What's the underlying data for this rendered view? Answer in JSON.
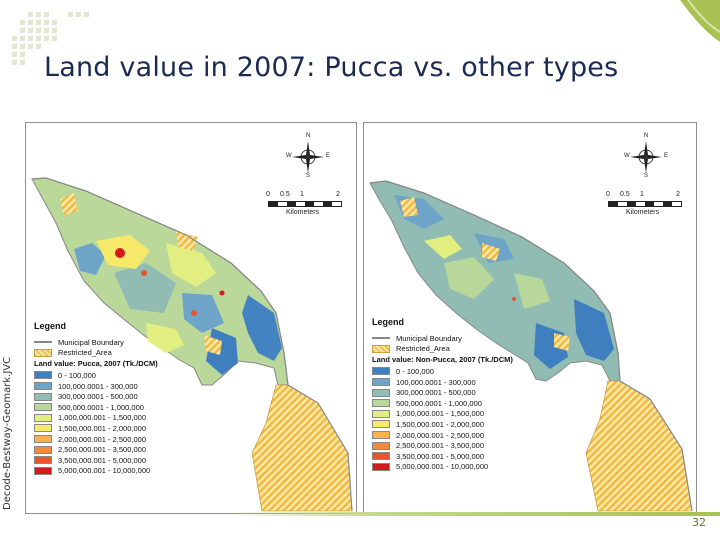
{
  "slide": {
    "title": "Land value in 2007: Pucca vs. other types",
    "side_caption": "Decode-Bestway-Geomark.JVC",
    "page_number": "32",
    "accent_color": "#a8c152"
  },
  "maps": [
    {
      "compass": {
        "n": "N",
        "s": "S",
        "e": "E",
        "w": "W"
      },
      "scale": {
        "ticks": [
          "0",
          "0.5",
          "1",
          "2"
        ],
        "unit": "Kilometers"
      },
      "legend": {
        "title": "Legend",
        "boundary_label": "Municipal Boundary",
        "restricted_label": "Restricted_Area",
        "value_title": "Land value: Pucca, 2007 (Tk./DCM)",
        "classes": [
          {
            "label": "0 - 100,000",
            "color": "#3f7fbf"
          },
          {
            "label": "100,000.0001 - 300,000",
            "color": "#6ea4c8"
          },
          {
            "label": "300,000.0001 - 500,000",
            "color": "#91bcb4"
          },
          {
            "label": "500,000.0001 - 1,000,000",
            "color": "#b7d89a"
          },
          {
            "label": "1,000,000.001 - 1,500,000",
            "color": "#e2ef80"
          },
          {
            "label": "1,500,000.001 - 2,000,000",
            "color": "#f7ea6a"
          },
          {
            "label": "2,000,000.001 - 2,500,000",
            "color": "#f6b24d"
          },
          {
            "label": "2,500,000.001 - 3,500,000",
            "color": "#f08a3a"
          },
          {
            "label": "3,500,000.001 - 5,000,000",
            "color": "#e8552c"
          },
          {
            "label": "5,000,000.001 - 10,000,000",
            "color": "#d7191c"
          }
        ]
      }
    },
    {
      "compass": {
        "n": "N",
        "s": "S",
        "e": "E",
        "w": "W"
      },
      "scale": {
        "ticks": [
          "0",
          "0.5",
          "1",
          "2"
        ],
        "unit": "Kilometers"
      },
      "legend": {
        "title": "Legend",
        "boundary_label": "Municipal Boundary",
        "restricted_label": "Restricted_Area",
        "value_title": "Land value: Non-Pucca, 2007 (Tk./DCM)",
        "classes": [
          {
            "label": "0 - 100,000",
            "color": "#3f7fbf"
          },
          {
            "label": "100,000.0001 - 300,000",
            "color": "#6ea4c8"
          },
          {
            "label": "300,000.0001 - 500,000",
            "color": "#91bcb4"
          },
          {
            "label": "500,000.0001 - 1,000,000",
            "color": "#b7d89a"
          },
          {
            "label": "1,000,000.001 - 1,500,000",
            "color": "#e2ef80"
          },
          {
            "label": "1,500,000.001 - 2,000,000",
            "color": "#f7ea6a"
          },
          {
            "label": "2,000,000.001 - 2,500,000",
            "color": "#f6b24d"
          },
          {
            "label": "2,500,000.001 - 3,500,000",
            "color": "#f08a3a"
          },
          {
            "label": "3,500,000.001 - 5,000,000",
            "color": "#e8552c"
          },
          {
            "label": "5,000,000.001 - 10,000,000",
            "color": "#d7191c"
          }
        ]
      }
    }
  ]
}
